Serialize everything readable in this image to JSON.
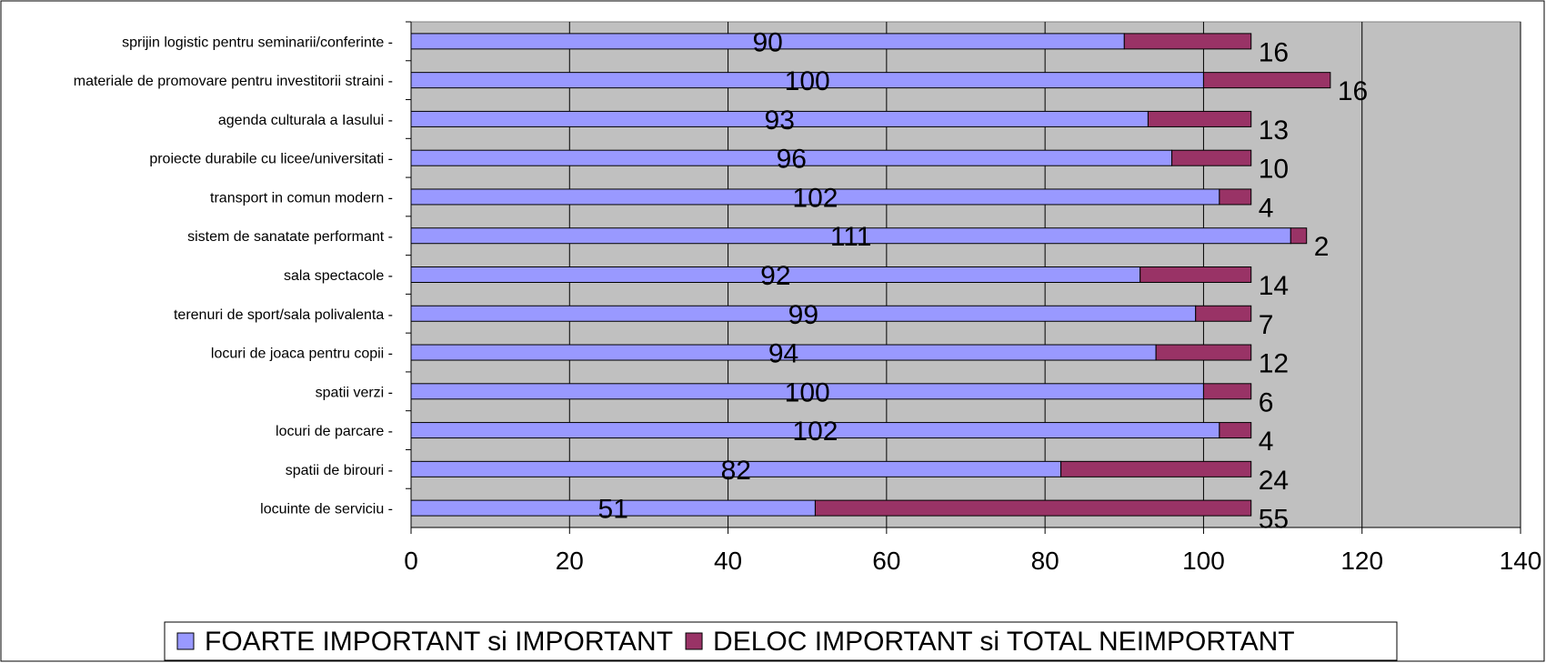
{
  "chart_data": {
    "type": "bar",
    "orientation": "horizontal",
    "stacked": true,
    "categories": [
      "sprijin logistic pentru seminarii/conferinte -",
      "materiale de promovare pentru investitorii straini -",
      "agenda culturala a Iasului -",
      "proiecte durabile cu licee/universitati -",
      "transport in comun modern -",
      "sistem de sanatate performant -",
      "sala spectacole -",
      "terenuri de sport/sala polivalenta -",
      "locuri de joaca pentru copii -",
      "spatii verzi -",
      "locuri de parcare -",
      "spatii de birouri -",
      "locuinte de serviciu -"
    ],
    "series": [
      {
        "name": "FOARTE IMPORTANT si IMPORTANT",
        "color": "#9999ff",
        "values": [
          90,
          100,
          93,
          96,
          102,
          111,
          92,
          99,
          94,
          100,
          102,
          82,
          51
        ]
      },
      {
        "name": "DELOC IMPORTANT si TOTAL NEIMPORTANT",
        "color": "#993366",
        "values": [
          16,
          16,
          13,
          10,
          4,
          2,
          14,
          7,
          12,
          6,
          4,
          24,
          55
        ]
      }
    ],
    "xlim": [
      0,
      140
    ],
    "xticks": [
      "0",
      "20",
      "40",
      "60",
      "80",
      "100",
      "120",
      "140"
    ],
    "plot_background": "#c0c0c0",
    "grid": true,
    "legend": "bottom"
  }
}
